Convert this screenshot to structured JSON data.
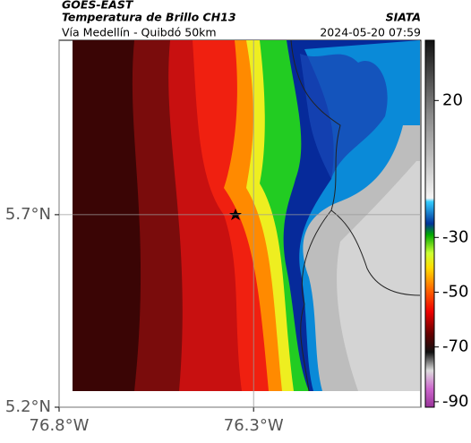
{
  "header": {
    "source": "GOES-EAST",
    "title": "Temperatura de Brillo CH13",
    "org": "SIATA",
    "route": "Vía Medellín - Quibdó 50km",
    "datetime": "2024-05-20 07:59"
  },
  "map": {
    "xlim": [
      -76.8,
      -75.87
    ],
    "ylim": [
      5.2,
      6.153
    ],
    "xticks": [
      {
        "value": -76.8,
        "label": "76.8°W"
      },
      {
        "value": -76.3,
        "label": "76.3°W"
      }
    ],
    "yticks": [
      {
        "value": 5.2,
        "label": "5.2°N"
      },
      {
        "value": 5.7,
        "label": "5.7°N"
      }
    ]
  },
  "colorbar": {
    "lim": [
      -92,
      42
    ],
    "ticks": [
      20,
      -30,
      -50,
      -70,
      -90
    ]
  }
}
